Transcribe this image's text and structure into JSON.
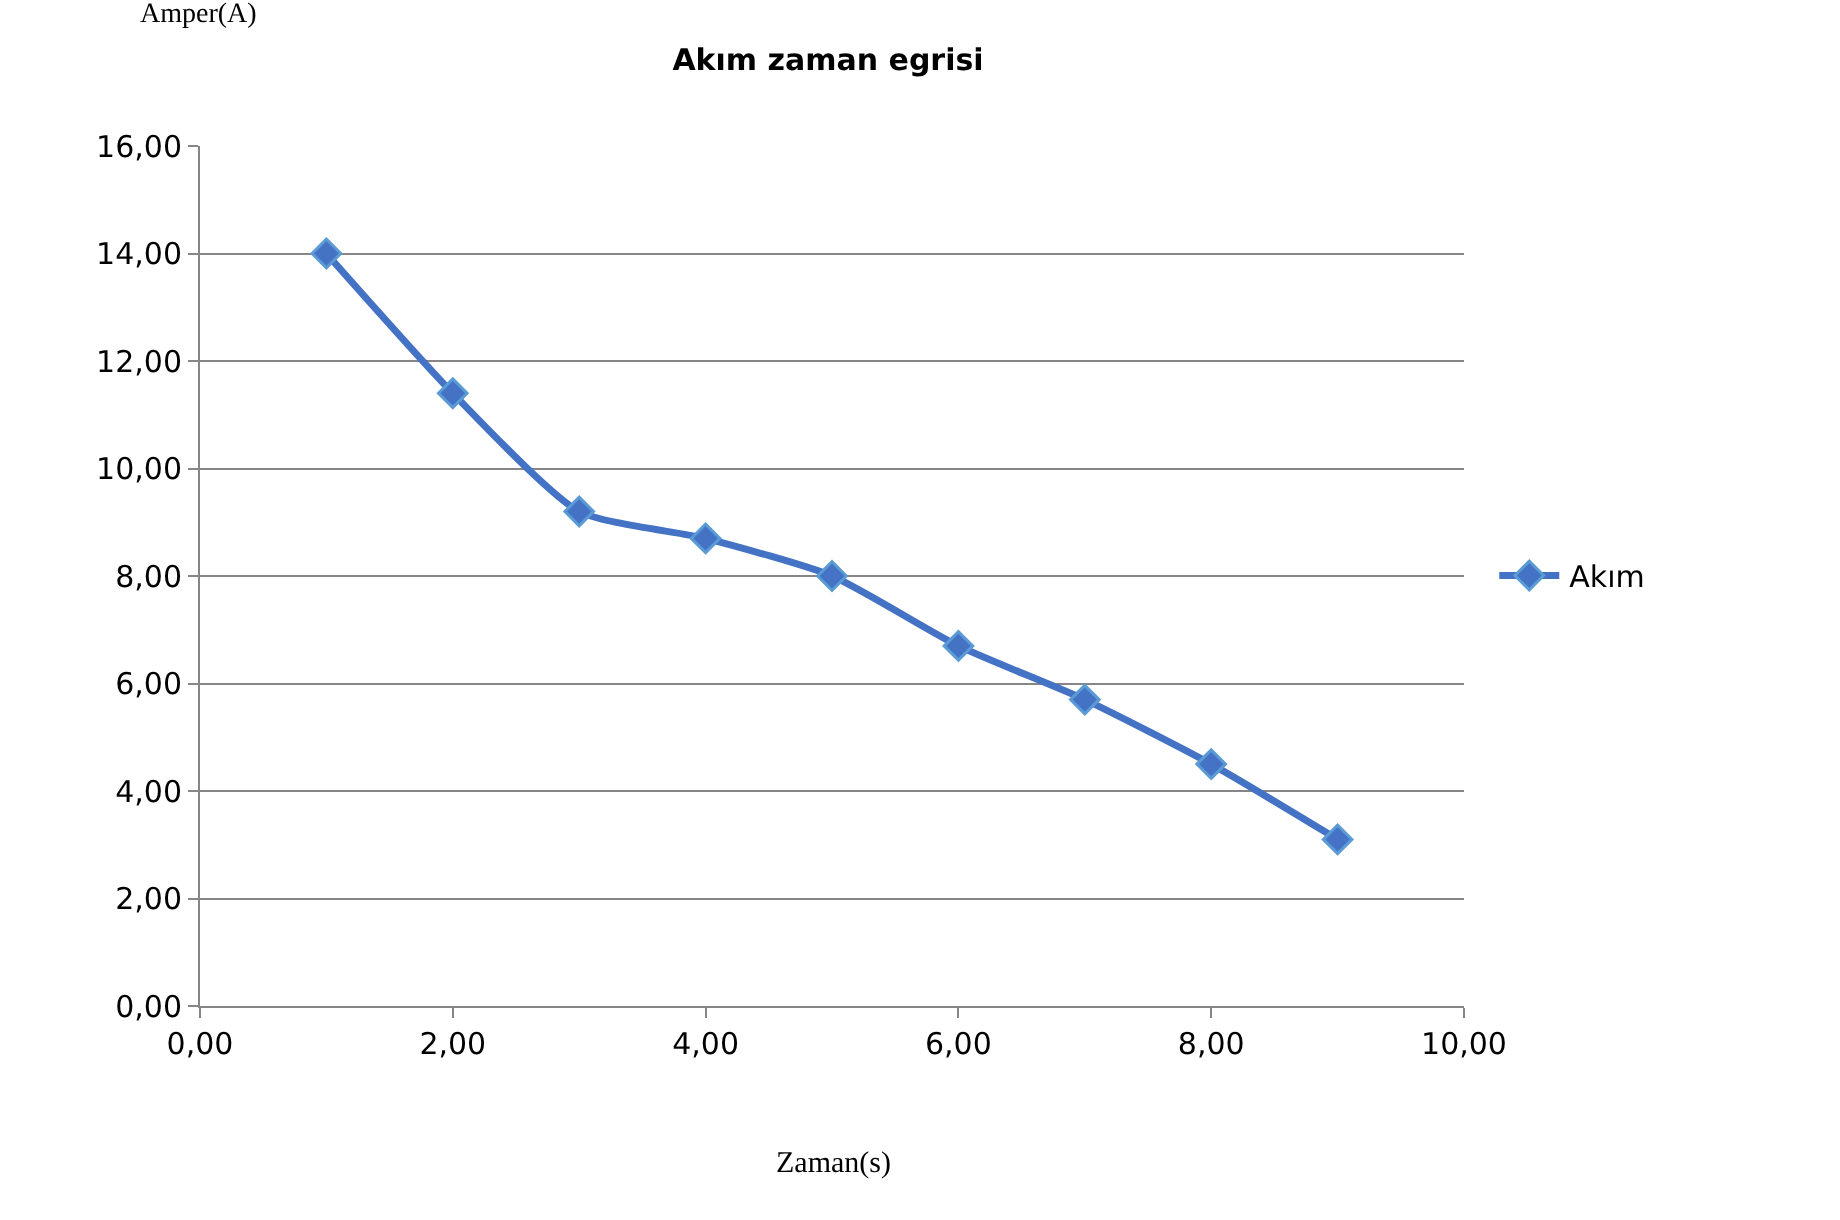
{
  "chart_data": {
    "type": "line",
    "title": "Akım zaman egrisi",
    "xlabel": "Zaman(s)",
    "ylabel": "Amper(A)",
    "x": [
      1,
      2,
      3,
      4,
      5,
      6,
      7,
      8,
      9
    ],
    "series": [
      {
        "name": "Akım",
        "color": "#4472c4",
        "values": [
          14.0,
          11.4,
          9.2,
          8.7,
          8.0,
          6.7,
          5.7,
          4.5,
          3.1
        ]
      }
    ],
    "xlim": [
      0,
      10
    ],
    "xticks": [
      {
        "value": 0,
        "label": "0,00"
      },
      {
        "value": 2,
        "label": "2,00"
      },
      {
        "value": 4,
        "label": "4,00"
      },
      {
        "value": 6,
        "label": "6,00"
      },
      {
        "value": 8,
        "label": "8,00"
      },
      {
        "value": 10,
        "label": "10,00"
      }
    ],
    "ylim": [
      0,
      16
    ],
    "yticks": [
      {
        "value": 0,
        "label": "0,00"
      },
      {
        "value": 2,
        "label": "2,00"
      },
      {
        "value": 4,
        "label": "4,00"
      },
      {
        "value": 6,
        "label": "6,00"
      },
      {
        "value": 8,
        "label": "8,00"
      },
      {
        "value": 10,
        "label": "10,00"
      },
      {
        "value": 12,
        "label": "12,00"
      },
      {
        "value": 14,
        "label": "14,00"
      },
      {
        "value": 16,
        "label": "16,00"
      }
    ],
    "grid": "y",
    "legend": "right",
    "marker": "diamond",
    "line_style": "solid"
  }
}
